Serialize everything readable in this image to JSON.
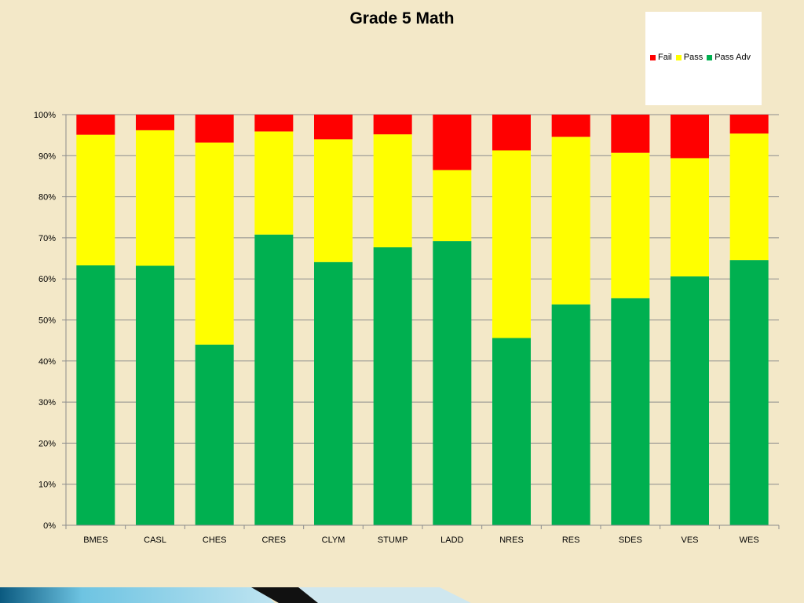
{
  "chart_data": {
    "type": "bar",
    "stacked": true,
    "title": "Grade 5 Math",
    "categories": [
      "BMES",
      "CASL",
      "CHES",
      "CRES",
      "CLYM",
      "STUMP",
      "LADD",
      "NRES",
      "RES",
      "SDES",
      "VES",
      "WES"
    ],
    "series": [
      {
        "name": "Pass Adv",
        "color": "#00b050",
        "values": [
          63.3,
          63.2,
          44.0,
          70.8,
          64.1,
          67.7,
          69.2,
          45.6,
          53.8,
          55.3,
          60.6,
          64.6
        ]
      },
      {
        "name": "Pass",
        "color": "#ffff00",
        "values": [
          31.8,
          33.0,
          49.2,
          25.1,
          29.9,
          27.5,
          17.3,
          45.7,
          40.8,
          35.4,
          28.8,
          30.8
        ]
      },
      {
        "name": "Fail",
        "color": "#ff0000",
        "values": [
          4.9,
          3.8,
          6.8,
          4.1,
          6.0,
          4.8,
          13.5,
          8.7,
          5.4,
          9.3,
          10.6,
          4.6
        ]
      }
    ],
    "legend": {
      "position": "top-right",
      "entries": [
        {
          "name": "Fail",
          "color": "#ff0000"
        },
        {
          "name": "Pass",
          "color": "#ffff00"
        },
        {
          "name": "Pass Adv",
          "color": "#00b050"
        }
      ]
    },
    "ylim": [
      0,
      100
    ],
    "yticks": [
      "0%",
      "10%",
      "20%",
      "30%",
      "40%",
      "50%",
      "60%",
      "70%",
      "80%",
      "90%",
      "100%"
    ],
    "grid": true,
    "xlabel": "",
    "ylabel": ""
  },
  "colors": {
    "background": "#f3e8c8",
    "gridline": "#8c8c8c",
    "legend_background": "#ffffff"
  }
}
